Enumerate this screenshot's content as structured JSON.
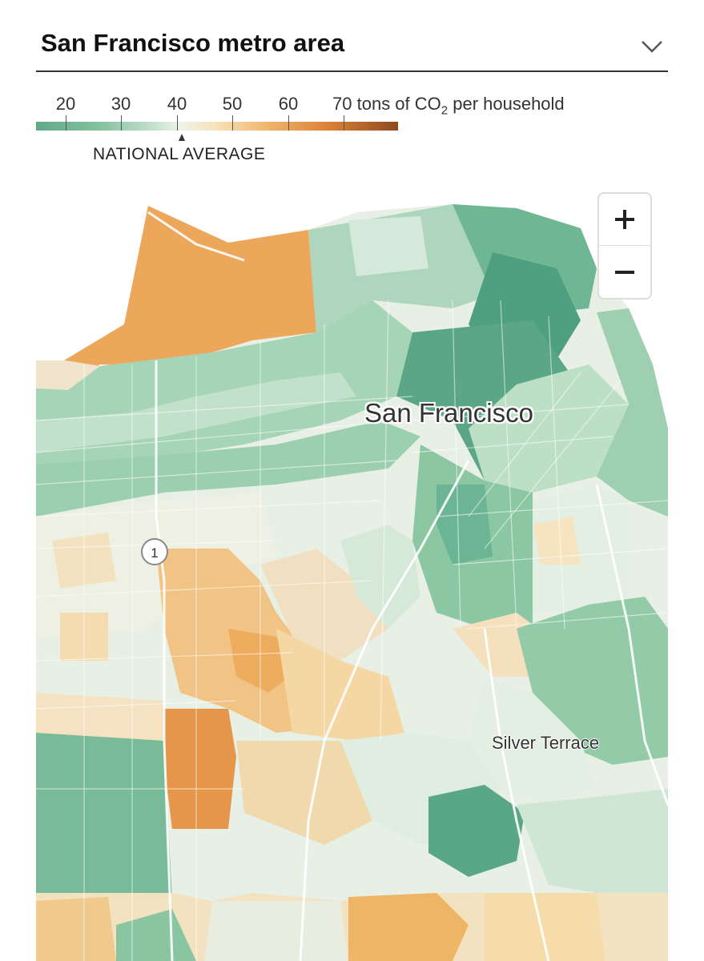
{
  "header": {
    "title": "San Francisco metro area",
    "dropdown_icon": "chevron-down-icon"
  },
  "legend": {
    "ticks": [
      "20",
      "30",
      "40",
      "50",
      "60",
      "70"
    ],
    "unit_prefix": "tons of CO",
    "unit_sub": "2",
    "unit_suffix": " per household",
    "national_average_label": "NATIONAL AVERAGE",
    "national_average_value": 40.3,
    "scale_colors": [
      "#5faa86",
      "#86c29f",
      "#c7e2cf",
      "#eef3ea",
      "#f6e2b8",
      "#f1b871",
      "#dd8338",
      "#8e4a1d"
    ]
  },
  "map": {
    "city_label": "San Francisco",
    "neighborhood_label": "Silver Terrace",
    "route_shield": "1"
  },
  "zoom": {
    "in_label": "+",
    "out_label": "−"
  }
}
